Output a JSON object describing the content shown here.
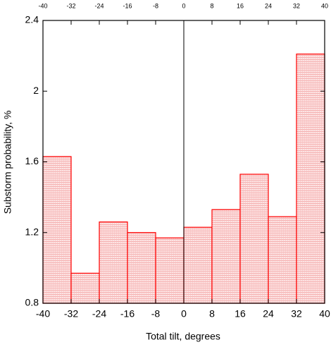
{
  "chart_data": {
    "type": "histogram",
    "x_label": "Total tilt, degrees",
    "y_label": "Substorm probability, %",
    "bins": [
      -40,
      -32,
      -24,
      -16,
      -8,
      0,
      8,
      16,
      24,
      32,
      40
    ],
    "values": [
      1.63,
      0.97,
      1.26,
      1.2,
      1.17,
      1.23,
      1.33,
      1.53,
      1.29,
      2.21
    ],
    "color": "#ff0000",
    "xlim": [
      -40,
      40
    ],
    "xticks": [
      -40,
      -32,
      -24,
      -16,
      -8,
      0,
      8,
      16,
      24,
      32,
      40
    ],
    "ylim": [
      0.8,
      2.4
    ],
    "yticks": [
      0.8,
      1.2,
      1.6,
      2,
      2.4
    ]
  }
}
